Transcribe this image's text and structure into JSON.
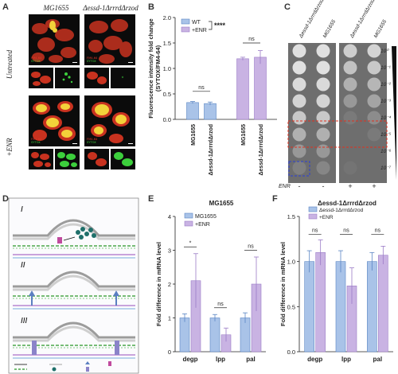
{
  "panel_letters": {
    "A": "A",
    "B": "B",
    "C": "C",
    "D": "D",
    "E": "E",
    "F": "F"
  },
  "panel_a": {
    "col_headers": [
      "MG1655",
      "Δessd-1ΔrrrdΔrzod"
    ],
    "row_headers": [
      "Untreated",
      "+ENR"
    ],
    "stain_labels": [
      "FM4-64",
      "SYTOX"
    ],
    "colors": {
      "membrane": "#e23a2a",
      "sytox": "#3ccf3c",
      "overlap": "#f3d23a"
    }
  },
  "chart_data": [
    {
      "panel": "B",
      "type": "bar",
      "categories": [
        "MG1655",
        "Δessd-1ΔrrrdΔrzod",
        "MG1655",
        "Δessd-1ΔrrrdΔrzod"
      ],
      "values": [
        0.33,
        0.31,
        1.19,
        1.22
      ],
      "errors": [
        0.02,
        0.03,
        0.03,
        0.13
      ],
      "bar_series": [
        0,
        0,
        1,
        1
      ],
      "legend": [
        "WT",
        "+ENR"
      ],
      "significance": [
        "ns",
        "ns"
      ],
      "legend_significance": "****",
      "ylabel": "Fluorescence intensity fold change\n(SYTOX/FM4-64)",
      "ylim": [
        0.0,
        2.0
      ],
      "yticks": [
        0.0,
        0.5,
        1.0,
        1.5,
        2.0
      ],
      "colors": [
        "#a9c3e8",
        "#c9b3e3"
      ]
    },
    {
      "panel": "E",
      "type": "bar",
      "title": "MG1655",
      "categories": [
        "degp",
        "lpp",
        "pal"
      ],
      "series": [
        {
          "name": "MG1655",
          "values": [
            1.0,
            1.0,
            1.0
          ],
          "errors": [
            0.12,
            0.1,
            0.15
          ]
        },
        {
          "name": "+ENR",
          "values": [
            2.1,
            0.5,
            2.0
          ],
          "errors": [
            0.8,
            0.2,
            0.8
          ]
        }
      ],
      "significance": [
        "*",
        "ns",
        "ns"
      ],
      "ylabel": "Fold difference in mRNA level",
      "ylim": [
        0,
        4
      ],
      "yticks": [
        0,
        1,
        2,
        3,
        4
      ],
      "colors": [
        "#a9c3e8",
        "#c9b3e3"
      ]
    },
    {
      "panel": "F",
      "type": "bar",
      "title": "Δessd-1ΔrrrdΔrzod",
      "categories": [
        "degp",
        "lpp",
        "pal"
      ],
      "series": [
        {
          "name": "Δessd-1ΔrrrdΔrzod",
          "values": [
            1.0,
            1.0,
            1.0
          ],
          "errors": [
            0.12,
            0.12,
            0.1
          ]
        },
        {
          "name": "+ENR",
          "values": [
            1.1,
            0.73,
            1.07
          ],
          "errors": [
            0.14,
            0.2,
            0.1
          ]
        }
      ],
      "significance": [
        "ns",
        "ns",
        "ns"
      ],
      "ylabel": "Fold difference in mRNA level",
      "ylim": [
        0.0,
        1.5
      ],
      "yticks": [
        0.0,
        0.5,
        1.0,
        1.5
      ],
      "colors": [
        "#a9c3e8",
        "#c9b3e3"
      ]
    }
  ],
  "panel_c": {
    "col_headers": [
      "Δessd-1ΔrrrdΔrzod",
      "MG1655",
      "Δessd-1ΔrrrdΔrzod",
      "MG1655"
    ],
    "dilutions": [
      "10⁰",
      "10⁻¹",
      "10⁻²",
      "10⁻³",
      "10⁻⁴",
      "10⁻⁵",
      "10⁻⁶",
      "10⁻⁷"
    ],
    "enr_label": "ENR",
    "enr_marks": [
      "-",
      "-",
      "+",
      "+"
    ],
    "colors": {
      "highlight_red": "#e0301e",
      "highlight_blue": "#2a3fd6"
    }
  },
  "panel_d": {
    "stage_labels": [
      "I",
      "II",
      "III"
    ]
  }
}
